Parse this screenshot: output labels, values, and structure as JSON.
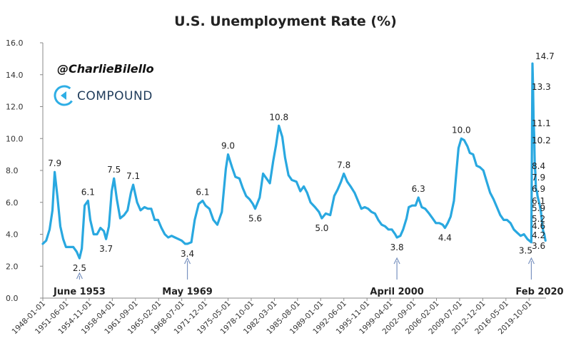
{
  "watermark": {
    "handle": "@CharlieBilello",
    "brand": "COMPOUND",
    "logo_icon": "compound-c-logo"
  },
  "colors": {
    "line": "#29a8e0",
    "axis": "#888888",
    "arrow": "#7a93c0",
    "logo": "#2eaee5"
  },
  "chart_data": {
    "type": "line",
    "title": "U.S. Unemployment Rate (%)",
    "xlabel": "",
    "ylabel": "",
    "ylim": [
      0,
      16
    ],
    "yticks": [
      "0.0",
      "2.0",
      "4.0",
      "6.0",
      "8.0",
      "10.0",
      "12.0",
      "14.0",
      "16.0"
    ],
    "xticks": [
      "1948-01-01",
      "1951-06-01",
      "1954-11-01",
      "1958-04-01",
      "1961-09-01",
      "1965-02-01",
      "1968-07-01",
      "1971-12-01",
      "1975-05-01",
      "1978-10-01",
      "1982-03-01",
      "1985-08-01",
      "1989-01-01",
      "1992-06-01",
      "1995-11-01",
      "1999-04-01",
      "2002-09-01",
      "2006-02-01",
      "2009-07-01",
      "2012-12-01",
      "2016-05-01",
      "2019-10-01"
    ],
    "grid": false,
    "legend": "none",
    "series": [
      {
        "points": [
          [
            "1948-01",
            3.4
          ],
          [
            "1948-07",
            3.6
          ],
          [
            "1949-01",
            4.3
          ],
          [
            "1949-06",
            5.5
          ],
          [
            "1949-10",
            7.9
          ],
          [
            "1950-03",
            6.3
          ],
          [
            "1950-08",
            4.5
          ],
          [
            "1951-01",
            3.7
          ],
          [
            "1951-06",
            3.2
          ],
          [
            "1952-01",
            3.2
          ],
          [
            "1952-07",
            3.2
          ],
          [
            "1953-01",
            2.9
          ],
          [
            "1953-06",
            2.5
          ],
          [
            "1953-10",
            3.1
          ],
          [
            "1954-03",
            5.8
          ],
          [
            "1954-09",
            6.1
          ],
          [
            "1955-01",
            4.9
          ],
          [
            "1955-07",
            4.0
          ],
          [
            "1956-01",
            4.0
          ],
          [
            "1956-07",
            4.4
          ],
          [
            "1957-01",
            4.2
          ],
          [
            "1957-05",
            3.7
          ],
          [
            "1957-10",
            4.5
          ],
          [
            "1958-03",
            6.7
          ],
          [
            "1958-07",
            7.5
          ],
          [
            "1958-12",
            6.2
          ],
          [
            "1959-06",
            5.0
          ],
          [
            "1960-01",
            5.2
          ],
          [
            "1960-07",
            5.5
          ],
          [
            "1961-01",
            6.6
          ],
          [
            "1961-05",
            7.1
          ],
          [
            "1961-12",
            6.0
          ],
          [
            "1962-06",
            5.5
          ],
          [
            "1963-01",
            5.7
          ],
          [
            "1963-07",
            5.6
          ],
          [
            "1964-01",
            5.6
          ],
          [
            "1964-07",
            4.9
          ],
          [
            "1965-01",
            4.9
          ],
          [
            "1965-07",
            4.4
          ],
          [
            "1966-01",
            4.0
          ],
          [
            "1966-07",
            3.8
          ],
          [
            "1967-01",
            3.9
          ],
          [
            "1967-07",
            3.8
          ],
          [
            "1968-01",
            3.7
          ],
          [
            "1968-07",
            3.6
          ],
          [
            "1969-01",
            3.4
          ],
          [
            "1969-05",
            3.4
          ],
          [
            "1969-12",
            3.5
          ],
          [
            "1970-06",
            4.9
          ],
          [
            "1971-01",
            5.9
          ],
          [
            "1971-08",
            6.1
          ],
          [
            "1972-01",
            5.8
          ],
          [
            "1972-08",
            5.6
          ],
          [
            "1973-03",
            4.9
          ],
          [
            "1973-10",
            4.6
          ],
          [
            "1974-06",
            5.4
          ],
          [
            "1975-01",
            8.1
          ],
          [
            "1975-05",
            9.0
          ],
          [
            "1975-12",
            8.2
          ],
          [
            "1976-06",
            7.6
          ],
          [
            "1977-01",
            7.5
          ],
          [
            "1977-07",
            6.9
          ],
          [
            "1978-01",
            6.4
          ],
          [
            "1978-07",
            6.2
          ],
          [
            "1979-01",
            5.9
          ],
          [
            "1979-05",
            5.6
          ],
          [
            "1980-01",
            6.3
          ],
          [
            "1980-07",
            7.8
          ],
          [
            "1981-01",
            7.5
          ],
          [
            "1981-07",
            7.2
          ],
          [
            "1982-01",
            8.6
          ],
          [
            "1982-06",
            9.6
          ],
          [
            "1982-11",
            10.8
          ],
          [
            "1983-05",
            10.1
          ],
          [
            "1983-10",
            8.8
          ],
          [
            "1984-04",
            7.7
          ],
          [
            "1984-10",
            7.4
          ],
          [
            "1985-06",
            7.3
          ],
          [
            "1986-01",
            6.7
          ],
          [
            "1986-07",
            7.0
          ],
          [
            "1987-01",
            6.6
          ],
          [
            "1987-07",
            6.0
          ],
          [
            "1988-03",
            5.7
          ],
          [
            "1988-10",
            5.4
          ],
          [
            "1989-03",
            5.0
          ],
          [
            "1989-10",
            5.3
          ],
          [
            "1990-06",
            5.2
          ],
          [
            "1991-01",
            6.4
          ],
          [
            "1991-07",
            6.8
          ],
          [
            "1992-01",
            7.3
          ],
          [
            "1992-06",
            7.8
          ],
          [
            "1992-12",
            7.3
          ],
          [
            "1993-06",
            7.0
          ],
          [
            "1994-01",
            6.6
          ],
          [
            "1994-07",
            6.1
          ],
          [
            "1995-01",
            5.6
          ],
          [
            "1995-07",
            5.7
          ],
          [
            "1996-01",
            5.6
          ],
          [
            "1996-07",
            5.4
          ],
          [
            "1997-01",
            5.3
          ],
          [
            "1997-07",
            4.9
          ],
          [
            "1998-01",
            4.6
          ],
          [
            "1998-07",
            4.5
          ],
          [
            "1999-01",
            4.3
          ],
          [
            "1999-07",
            4.3
          ],
          [
            "2000-01",
            4.0
          ],
          [
            "2000-04",
            3.8
          ],
          [
            "2000-10",
            3.9
          ],
          [
            "2001-03",
            4.3
          ],
          [
            "2001-09",
            5.0
          ],
          [
            "2002-01",
            5.7
          ],
          [
            "2002-07",
            5.8
          ],
          [
            "2003-01",
            5.8
          ],
          [
            "2003-06",
            6.3
          ],
          [
            "2003-12",
            5.7
          ],
          [
            "2004-06",
            5.6
          ],
          [
            "2005-01",
            5.3
          ],
          [
            "2005-07",
            5.0
          ],
          [
            "2006-01",
            4.7
          ],
          [
            "2006-07",
            4.7
          ],
          [
            "2007-01",
            4.6
          ],
          [
            "2007-05",
            4.4
          ],
          [
            "2007-10",
            4.7
          ],
          [
            "2008-03",
            5.1
          ],
          [
            "2008-09",
            6.1
          ],
          [
            "2009-01",
            7.8
          ],
          [
            "2009-05",
            9.4
          ],
          [
            "2009-10",
            10.0
          ],
          [
            "2010-03",
            9.9
          ],
          [
            "2010-09",
            9.5
          ],
          [
            "2011-01",
            9.1
          ],
          [
            "2011-07",
            9.0
          ],
          [
            "2012-01",
            8.3
          ],
          [
            "2012-07",
            8.2
          ],
          [
            "2013-01",
            8.0
          ],
          [
            "2013-07",
            7.3
          ],
          [
            "2014-01",
            6.6
          ],
          [
            "2014-07",
            6.2
          ],
          [
            "2015-01",
            5.7
          ],
          [
            "2015-07",
            5.2
          ],
          [
            "2016-01",
            4.9
          ],
          [
            "2016-07",
            4.9
          ],
          [
            "2017-01",
            4.7
          ],
          [
            "2017-07",
            4.3
          ],
          [
            "2018-01",
            4.1
          ],
          [
            "2018-07",
            3.9
          ],
          [
            "2019-01",
            4.0
          ],
          [
            "2019-07",
            3.7
          ],
          [
            "2020-02",
            3.5
          ],
          [
            "2020-04",
            14.7
          ],
          [
            "2020-05",
            13.3
          ],
          [
            "2020-06",
            11.1
          ],
          [
            "2020-07",
            10.2
          ],
          [
            "2020-08",
            8.4
          ],
          [
            "2020-09",
            7.9
          ],
          [
            "2020-10",
            6.9
          ],
          [
            "2020-11",
            6.7
          ],
          [
            "2020-12",
            6.7
          ],
          [
            "2021-01",
            6.4
          ],
          [
            "2021-03",
            6.1
          ],
          [
            "2021-05",
            5.8
          ],
          [
            "2021-07",
            5.4
          ],
          [
            "2021-09",
            4.7
          ],
          [
            "2021-11",
            4.2
          ],
          [
            "2022-01",
            4.0
          ],
          [
            "2022-03",
            3.6
          ]
        ]
      }
    ],
    "data_labels": [
      {
        "text": "7.9",
        "x": "1949-10",
        "y": 7.9,
        "pos": "above"
      },
      {
        "text": "2.5",
        "x": "1953-06",
        "y": 2.5,
        "pos": "below"
      },
      {
        "text": "6.1",
        "x": "1954-09",
        "y": 6.1,
        "pos": "above"
      },
      {
        "text": "3.7",
        "x": "1957-05",
        "y": 3.7,
        "pos": "below"
      },
      {
        "text": "7.5",
        "x": "1958-07",
        "y": 7.5,
        "pos": "above"
      },
      {
        "text": "7.1",
        "x": "1961-05",
        "y": 7.1,
        "pos": "above"
      },
      {
        "text": "3.4",
        "x": "1969-05",
        "y": 3.4,
        "pos": "below"
      },
      {
        "text": "6.1",
        "x": "1971-08",
        "y": 6.1,
        "pos": "above"
      },
      {
        "text": "9.0",
        "x": "1975-05",
        "y": 9.0,
        "pos": "above"
      },
      {
        "text": "5.6",
        "x": "1979-05",
        "y": 5.6,
        "pos": "below"
      },
      {
        "text": "10.8",
        "x": "1982-11",
        "y": 10.8,
        "pos": "above"
      },
      {
        "text": "5.0",
        "x": "1989-03",
        "y": 5.0,
        "pos": "below"
      },
      {
        "text": "7.8",
        "x": "1992-06",
        "y": 7.8,
        "pos": "above"
      },
      {
        "text": "3.8",
        "x": "2000-04",
        "y": 3.8,
        "pos": "below"
      },
      {
        "text": "6.3",
        "x": "2003-06",
        "y": 6.3,
        "pos": "above"
      },
      {
        "text": "4.4",
        "x": "2007-05",
        "y": 4.4,
        "pos": "below"
      },
      {
        "text": "10.0",
        "x": "2009-10",
        "y": 10.0,
        "pos": "above"
      },
      {
        "text": "3.5",
        "x": "2020-02",
        "y": 3.5,
        "pos": "belowleft"
      },
      {
        "text": "14.7",
        "x": "2020-04",
        "y": 14.7,
        "pos": "above"
      }
    ],
    "recent_values": [
      "13.3",
      "11.1",
      "10.2",
      "8.4",
      "7.9",
      "6.9",
      "6.1",
      "5.9",
      "5.2",
      "4.6",
      "4.2",
      "3.6"
    ],
    "annotations": [
      {
        "text": "June 1953",
        "x": "1953-06"
      },
      {
        "text": "May 1969",
        "x": "1969-05"
      },
      {
        "text": "April 2000",
        "x": "2000-04"
      },
      {
        "text": "Feb 2020",
        "x": "2020-02"
      }
    ]
  }
}
